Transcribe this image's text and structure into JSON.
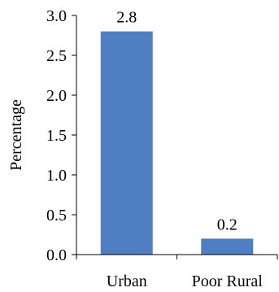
{
  "chart_data": {
    "type": "bar",
    "categories": [
      "Urban",
      "Poor Rural"
    ],
    "values": [
      2.8,
      0.2
    ],
    "data_labels": [
      "2.8",
      "0.2"
    ],
    "title": "",
    "xlabel": "",
    "ylabel": "Percentage",
    "ylim": [
      0,
      3.0
    ],
    "yticks": [
      0.0,
      0.5,
      1.0,
      1.5,
      2.0,
      2.5,
      3.0
    ],
    "ytick_labels": [
      "0.0",
      "0.5",
      "1.0",
      "1.5",
      "2.0",
      "2.5",
      "3.0"
    ],
    "grid": false,
    "legend": "none",
    "bar_color": "#4f7ec2"
  }
}
